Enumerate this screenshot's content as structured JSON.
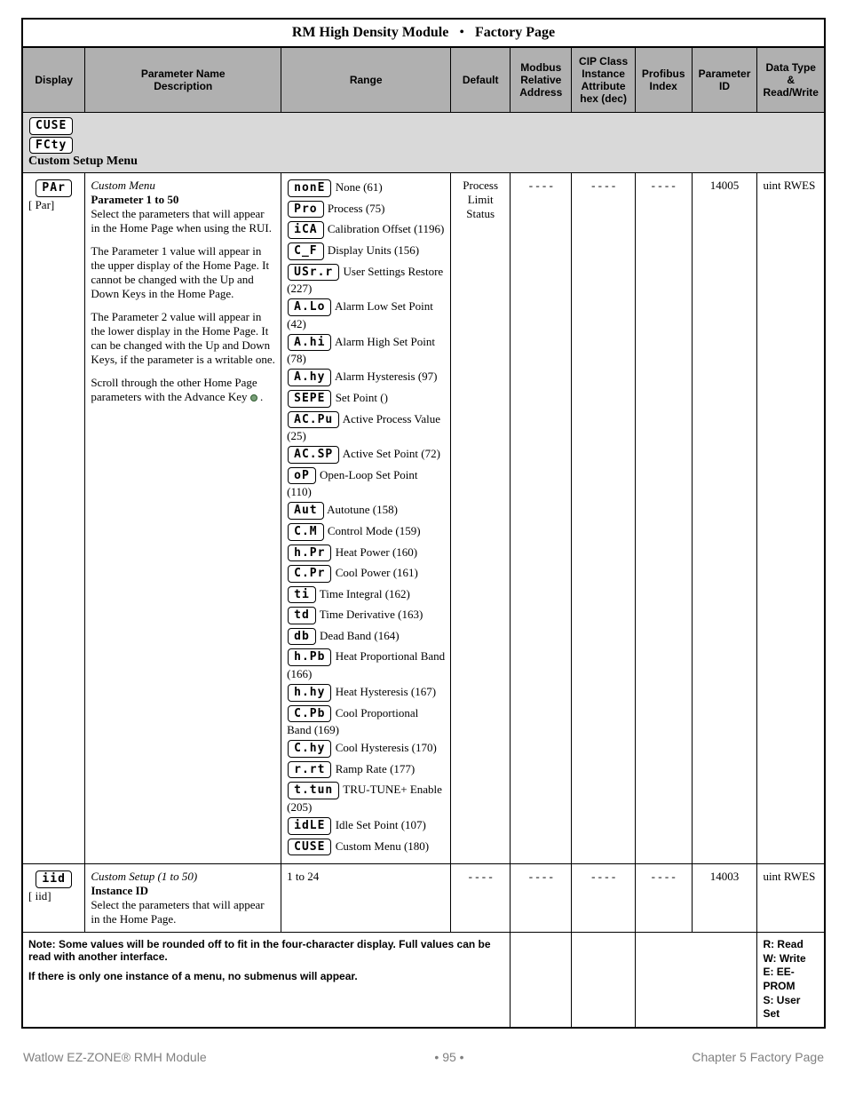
{
  "title": {
    "module": "RM High Density Module",
    "page": "Factory Page"
  },
  "headers": {
    "display": "Display",
    "param": "Parameter Name\nDescription",
    "range": "Range",
    "default": "Default",
    "modbus": "Modbus Relative Address",
    "cip": "CIP Class Instance Attribute hex (dec)",
    "profibus": "Profibus Index",
    "pid": "Parameter ID",
    "dtype": "Data Type & Read/Write"
  },
  "section": {
    "seg1": "CUSE",
    "seg2": "FCty",
    "label": "Custom Setup Menu"
  },
  "row1": {
    "display_seg": "PAr",
    "display_sub": "[ Par]",
    "param_line1": "Custom Menu",
    "param_line2": "Parameter 1 to 50",
    "param_p1": "Select the parameters that will appear in the Home Page when using the RUI.",
    "param_p2": "The Parameter 1 value will appear in the upper display of the Home Page. It cannot be changed with the Up and Down Keys in the Home Page.",
    "param_p3": "The Parameter 2 value will appear in the lower display in the Home Page. It can be changed with the Up and Down Keys, if the parameter is a writable one.",
    "param_p4a": "Scroll through the other Home Page parameters with the Advance Key ",
    "param_p4b": " .",
    "default": "Process Limit Status",
    "modbus": "- - - -",
    "cip": "- - - -",
    "profibus": "- - - -",
    "pid": "14005",
    "dtype": "uint RWES",
    "range": [
      {
        "seg": "nonE",
        "txt": "None (61)"
      },
      {
        "seg": " Pro",
        "txt": "Process (75)"
      },
      {
        "seg": " iCA",
        "txt": "Calibration Offset (1196)"
      },
      {
        "seg": " C_F",
        "txt": "Display Units (156)"
      },
      {
        "seg": "USr.r",
        "txt": "User Settings Restore (227)"
      },
      {
        "seg": " A.Lo",
        "txt": "Alarm Low Set Point (42)"
      },
      {
        "seg": " A.hi",
        "txt": "Alarm High Set Point (78)"
      },
      {
        "seg": " A.hy",
        "txt": "Alarm Hysteresis (97)"
      },
      {
        "seg": "SEPE",
        "txt": "Set Point ()"
      },
      {
        "seg": "AC.Pu",
        "txt": "Active Process Value (25)"
      },
      {
        "seg": "AC.SP",
        "txt": "Active Set Point (72)"
      },
      {
        "seg": "  oP",
        "txt": "Open-Loop Set Point (110)"
      },
      {
        "seg": " Aut",
        "txt": "Autotune (158)"
      },
      {
        "seg": " C.M",
        "txt": "Control Mode (159)"
      },
      {
        "seg": " h.Pr",
        "txt": "Heat Power (160)"
      },
      {
        "seg": " C.Pr",
        "txt": "Cool Power (161)"
      },
      {
        "seg": "  ti",
        "txt": "Time Integral (162)"
      },
      {
        "seg": "  td",
        "txt": "Time Derivative (163)"
      },
      {
        "seg": "  db",
        "txt": "Dead Band (164)"
      },
      {
        "seg": " h.Pb",
        "txt": "Heat Proportional Band (166)"
      },
      {
        "seg": " h.hy",
        "txt": "Heat Hysteresis (167)"
      },
      {
        "seg": " C.Pb",
        "txt": "Cool Proportional Band (169)"
      },
      {
        "seg": " C.hy",
        "txt": "Cool Hysteresis (170)"
      },
      {
        "seg": " r.rt",
        "txt": "Ramp Rate (177)"
      },
      {
        "seg": "t.tun",
        "txt": "TRU-TUNE+ Enable (205)"
      },
      {
        "seg": "idLE",
        "txt": "Idle Set Point (107)"
      },
      {
        "seg": "CUSE",
        "txt": "Custom Menu (180)"
      }
    ]
  },
  "row2": {
    "display_seg": "  iid",
    "display_sub": "[ iid]",
    "param_line1": "Custom Setup (1 to 50)",
    "param_line2": "Instance ID",
    "param_p1": "Select the parameters that will appear in the Home Page.",
    "range": "1 to 24",
    "default": "- - - -",
    "modbus": "- - - -",
    "cip": "- - - -",
    "profibus": "- - - -",
    "pid": "14003",
    "dtype": "uint RWES"
  },
  "note": {
    "left1": "Note: Some values will be rounded off to fit in the four-character display. Full values can be read with another interface.",
    "left2": "If there is only one instance of a menu, no submenus will appear.",
    "right": "R: Read\nW: Write\nE: EE-PROM\nS: User Set"
  },
  "footer": {
    "left": "Watlow EZ-ZONE® RMH Module",
    "mid": "• 95 •",
    "right": "Chapter 5 Factory Page"
  }
}
